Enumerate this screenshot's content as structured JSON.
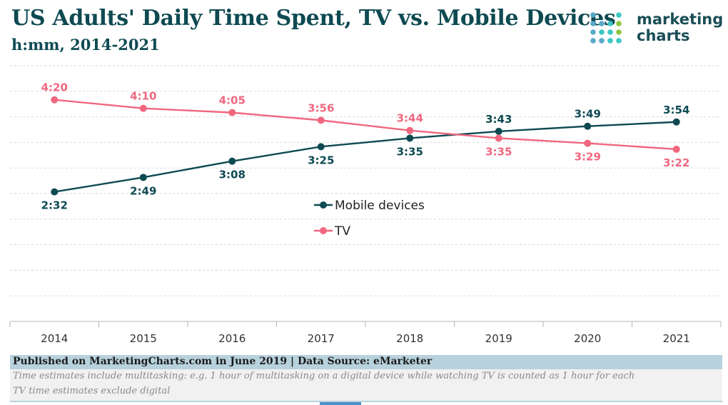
{
  "header": {
    "title": "US Adults' Daily Time Spent, TV vs. Mobile Devices",
    "subtitle": "h:mm, 2014-2021"
  },
  "logo": {
    "line1": "marketing",
    "line2": "charts",
    "icon": "dot-grid-icon",
    "colors": [
      "#5aa9c9",
      "#3cc7c2",
      "#8fc63f"
    ]
  },
  "chart_data": {
    "type": "line",
    "title": "US Adults' Daily Time Spent, TV vs. Mobile Devices",
    "subtitle": "h:mm, 2014-2021",
    "xlabel": "",
    "ylabel": "",
    "x": [
      "2014",
      "2015",
      "2016",
      "2017",
      "2018",
      "2019",
      "2020",
      "2021"
    ],
    "ylim": [
      0,
      300
    ],
    "y_units": "minutes",
    "grid": true,
    "legend_position": "center",
    "series": [
      {
        "name": "Mobile devices",
        "color": "#0e4a52",
        "values": [
          152,
          169,
          188,
          205,
          215,
          223,
          229,
          234
        ],
        "labels": [
          "2:32",
          "2:49",
          "3:08",
          "3:25",
          "3:35",
          "3:43",
          "3:49",
          "3:54"
        ]
      },
      {
        "name": "TV",
        "color": "#f0677f",
        "values": [
          260,
          250,
          245,
          236,
          224,
          215,
          209,
          202
        ],
        "labels": [
          "4:20",
          "4:10",
          "4:05",
          "3:56",
          "3:44",
          "3:35",
          "3:29",
          "3:22"
        ]
      }
    ]
  },
  "footer": {
    "source": "Published on MarketingCharts.com in June 2019 | Data Source: eMarketer",
    "note1": "Time estimates include multitasking: e.g. 1 hour of multitasking on a digital device while watching TV is counted as 1 hour for each",
    "note2": "TV time estimates exclude digital"
  }
}
